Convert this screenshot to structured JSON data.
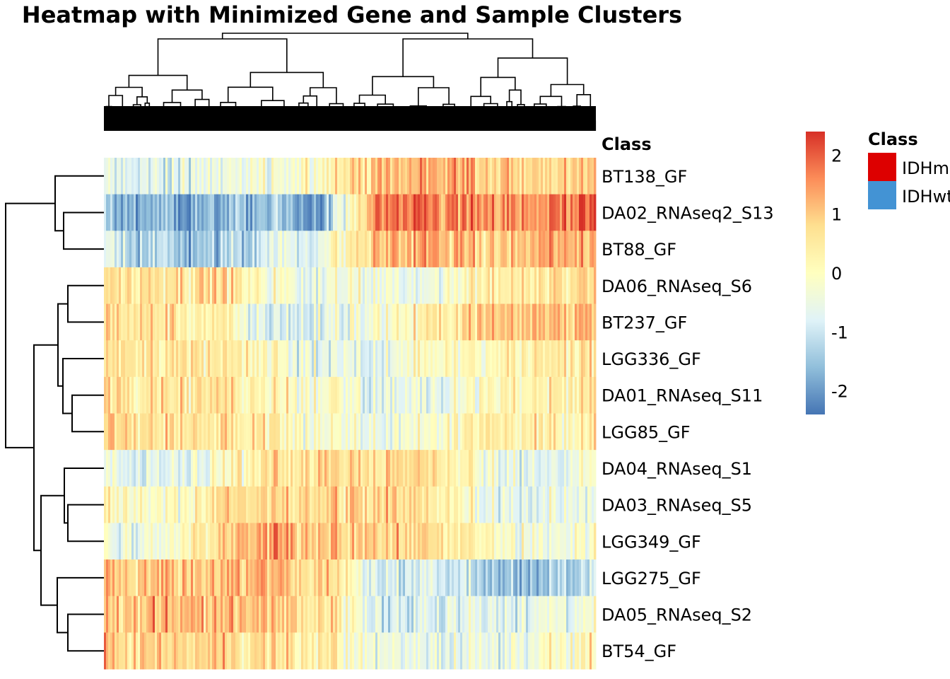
{
  "chart_data": {
    "type": "heatmap",
    "title": "Heatmap with Minimized Gene and Sample Clusters",
    "annotation_column_label": "Class",
    "samples": [
      "BT138_GF",
      "DA02_RNAseq2_S13",
      "BT88_GF",
      "DA06_RNAseq_S6",
      "BT237_GF",
      "LGG336_GF",
      "DA01_RNAseq_S11",
      "LGG85_GF",
      "DA04_RNAseq_S1",
      "DA03_RNAseq_S5",
      "LGG349_GF",
      "LGG275_GF",
      "DA05_RNAseq_S2",
      "BT54_GF"
    ],
    "row_profiles": [
      [
        -0.7,
        -0.8,
        -0.5,
        -0.3,
        0.1,
        1.0,
        1.3,
        1.1,
        0.9,
        0.8
      ],
      [
        -1.6,
        -1.7,
        -1.8,
        -1.5,
        -1.9,
        1.7,
        1.6,
        1.5,
        1.6,
        1.8
      ],
      [
        -0.8,
        -1.3,
        -1.6,
        -0.8,
        -0.4,
        1.1,
        1.2,
        0.9,
        1.3,
        1.2
      ],
      [
        0.6,
        0.7,
        0.8,
        -0.2,
        -0.4,
        -0.3,
        -0.6,
        0.6,
        0.5,
        0.8
      ],
      [
        0.7,
        0.6,
        0.3,
        -0.9,
        -0.6,
        -0.2,
        0.2,
        1.1,
        1.2,
        1.3
      ],
      [
        0.5,
        0.6,
        0.4,
        0.0,
        -0.5,
        -0.6,
        -0.2,
        0.3,
        0.4,
        0.5
      ],
      [
        0.8,
        0.7,
        0.6,
        0.3,
        0.0,
        -0.6,
        -0.7,
        0.2,
        0.3,
        0.5
      ],
      [
        0.7,
        0.6,
        0.5,
        0.3,
        0.0,
        -0.5,
        -0.4,
        0.6,
        0.3,
        0.4
      ],
      [
        -0.6,
        -0.7,
        -0.3,
        0.6,
        0.8,
        0.7,
        0.6,
        -0.2,
        -0.6,
        -0.4
      ],
      [
        0.1,
        -0.2,
        0.5,
        0.9,
        0.8,
        0.8,
        0.5,
        -0.3,
        -0.6,
        -0.3
      ],
      [
        -0.6,
        -0.5,
        0.7,
        1.3,
        1.2,
        0.9,
        0.6,
        0.2,
        -0.4,
        -0.1
      ],
      [
        1.1,
        1.0,
        1.1,
        1.2,
        0.9,
        -0.8,
        -1.0,
        -1.2,
        -1.5,
        -1.2
      ],
      [
        1.0,
        1.2,
        1.1,
        1.0,
        0.8,
        -0.9,
        -1.0,
        -0.6,
        -0.5,
        -0.4
      ],
      [
        0.9,
        0.8,
        0.9,
        0.6,
        0.5,
        -0.5,
        -0.7,
        -0.4,
        -0.1,
        0.1
      ]
    ],
    "colorbar": {
      "ticks": [
        2,
        1,
        0,
        -1,
        -2
      ],
      "range": [
        -2.4,
        2.4
      ],
      "colors": [
        "#4575b4",
        "#91bfdb",
        "#e0f3f8",
        "#ffffbf",
        "#fee090",
        "#fc8d59",
        "#d73027"
      ]
    },
    "legend": {
      "title": "Class",
      "entries": [
        {
          "label": "IDHmut",
          "color": "#dd0000"
        },
        {
          "label": "IDHwt",
          "color": "#4393d4"
        }
      ]
    }
  }
}
